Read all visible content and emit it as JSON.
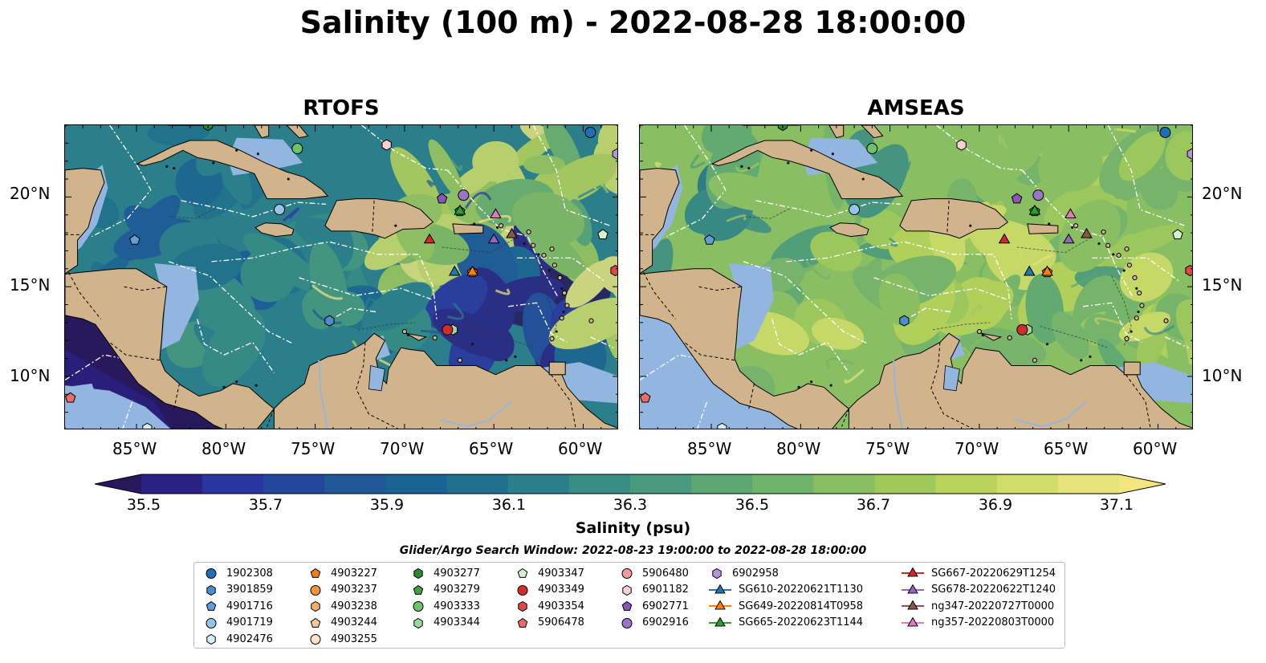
{
  "title": "Salinity (100 m) - 2022-08-28 18:00:00",
  "panels": [
    {
      "title": "RTOFS",
      "model": "rtofs"
    },
    {
      "title": "AMSEAS",
      "model": "amseas"
    }
  ],
  "axes": {
    "lon_ticks": [
      "85°W",
      "80°W",
      "75°W",
      "70°W",
      "65°W",
      "60°W"
    ],
    "lat_ticks": [
      "20°N",
      "15°N",
      "10°N"
    ],
    "extent": {
      "lon": [
        -89,
        -58
      ],
      "lat": [
        7,
        24
      ]
    }
  },
  "colorbar": {
    "label": "Salinity (psu)",
    "ticks": [
      "35.5",
      "35.7",
      "35.9",
      "36.1",
      "36.3",
      "36.5",
      "36.7",
      "36.9",
      "37.1"
    ],
    "range": [
      35.4,
      37.2
    ],
    "step": 0.1,
    "extend": "both",
    "colors": [
      "#27195c",
      "#2a2183",
      "#2b35a1",
      "#24479c",
      "#1f5797",
      "#1b6392",
      "#20718d",
      "#2a7f8a",
      "#388d85",
      "#48997e",
      "#5da775",
      "#72b36c",
      "#89bf62",
      "#a0c95c",
      "#b9d35a",
      "#d1dd6a",
      "#e6e27c",
      "#f4e57f"
    ]
  },
  "search_window": "Glider/Argo Search Window: 2022-08-23 19:00:00 to 2022-08-28 18:00:00",
  "legend": {
    "columns": [
      [
        {
          "label": "1902308",
          "marker": "circle",
          "color": "#1f6fb4"
        },
        {
          "label": "3901859",
          "marker": "hexagon",
          "color": "#4a8fc9"
        },
        {
          "label": "4901716",
          "marker": "pentagon",
          "color": "#5e9fd4"
        },
        {
          "label": "4901719",
          "marker": "circle",
          "color": "#94c4e8"
        },
        {
          "label": "4902476",
          "marker": "hexagon",
          "color": "#d6ecf8"
        }
      ],
      [
        {
          "label": "4903227",
          "marker": "pentagon",
          "color": "#f07f12"
        },
        {
          "label": "4903237",
          "marker": "circle",
          "color": "#f3953b"
        },
        {
          "label": "4903238",
          "marker": "hexagon",
          "color": "#f6ad6a"
        },
        {
          "label": "4903244",
          "marker": "pentagon",
          "color": "#f9c79a"
        },
        {
          "label": "4903255",
          "marker": "circle",
          "color": "#fde1c6"
        }
      ],
      [
        {
          "label": "4903277",
          "marker": "hexagon",
          "color": "#2c8a2c"
        },
        {
          "label": "4903279",
          "marker": "pentagon",
          "color": "#3fa23f"
        },
        {
          "label": "4903333",
          "marker": "circle",
          "color": "#6cc36c"
        },
        {
          "label": "4903344",
          "marker": "hexagon",
          "color": "#9bd99b"
        }
      ],
      [
        {
          "label": "4903347",
          "marker": "pentagon",
          "color": "#d4f2cc"
        },
        {
          "label": "4903349",
          "marker": "circle",
          "color": "#d42c2c"
        },
        {
          "label": "4903354",
          "marker": "hexagon",
          "color": "#e04848"
        },
        {
          "label": "5906478",
          "marker": "pentagon",
          "color": "#ec6b6b"
        }
      ],
      [
        {
          "label": "5906480",
          "marker": "circle",
          "color": "#f39b9b"
        },
        {
          "label": "6901182",
          "marker": "hexagon",
          "color": "#fbd0d0"
        },
        {
          "label": "6902771",
          "marker": "pentagon",
          "color": "#8a55b8"
        },
        {
          "label": "6902916",
          "marker": "circle",
          "color": "#9d73c6"
        }
      ],
      [
        {
          "label": "6902958",
          "marker": "hexagon",
          "color": "#b595d6"
        },
        {
          "label": "SG610-20220621T1130",
          "marker": "triangle",
          "color": "#1f77b4",
          "line": true
        },
        {
          "label": "SG649-20220814T0958",
          "marker": "triangle",
          "color": "#ff7f0e",
          "line": true
        },
        {
          "label": "SG665-20220623T1144",
          "marker": "triangle",
          "color": "#2ca02c",
          "line": true
        }
      ],
      [
        {
          "label": "SG667-20220629T1254",
          "marker": "triangle",
          "color": "#d62728",
          "line": true
        },
        {
          "label": "SG678-20220622T1240",
          "marker": "triangle",
          "color": "#9467bd",
          "line": true
        },
        {
          "label": "ng347-20220727T0000",
          "marker": "triangle",
          "color": "#8c564b",
          "line": true
        },
        {
          "label": "ng357-20220803T0000",
          "marker": "triangle",
          "color": "#e377c2",
          "line": true
        }
      ]
    ]
  },
  "platforms": [
    {
      "id": "1902308",
      "lon": -59.6,
      "lat": 23.6
    },
    {
      "id": "3901859",
      "lon": -74.2,
      "lat": 13.1
    },
    {
      "id": "4901716",
      "lon": -85.1,
      "lat": 17.6
    },
    {
      "id": "4901719",
      "lon": -77.0,
      "lat": 19.3
    },
    {
      "id": "4902476",
      "lon": -84.4,
      "lat": 7.1
    },
    {
      "id": "4903227",
      "lon": -66.2,
      "lat": 15.8
    },
    {
      "id": "4903277",
      "lon": -81.0,
      "lat": 24.0
    },
    {
      "id": "4903279",
      "lon": -66.9,
      "lat": 19.2
    },
    {
      "id": "4903333",
      "lon": -76.0,
      "lat": 22.7
    },
    {
      "id": "4903344",
      "lon": -67.3,
      "lat": 12.6
    },
    {
      "id": "4903347",
      "lon": -58.9,
      "lat": 17.9
    },
    {
      "id": "4903349",
      "lon": -67.6,
      "lat": 12.6
    },
    {
      "id": "4903354",
      "lon": -58.2,
      "lat": 15.9
    },
    {
      "id": "5906478",
      "lon": -88.7,
      "lat": 8.8
    },
    {
      "id": "6901182",
      "lon": -71.0,
      "lat": 22.9
    },
    {
      "id": "6902771",
      "lon": -67.9,
      "lat": 19.9
    },
    {
      "id": "6902916",
      "lon": -66.7,
      "lat": 20.1
    },
    {
      "id": "6902958",
      "lon": -58.1,
      "lat": 22.4
    },
    {
      "id": "SG610-20220621T1130",
      "lon": -67.2,
      "lat": 15.8
    },
    {
      "id": "SG649-20220814T0958",
      "lon": -66.2,
      "lat": 15.8
    },
    {
      "id": "SG665-20220623T1144",
      "lon": -66.9,
      "lat": 19.2
    },
    {
      "id": "SG667-20220629T1254",
      "lon": -68.6,
      "lat": 17.6
    },
    {
      "id": "SG678-20220622T1240",
      "lon": -65.0,
      "lat": 17.6
    },
    {
      "id": "ng347-20220727T0000",
      "lon": -64.0,
      "lat": 17.9
    },
    {
      "id": "ng357-20220803T0000",
      "lon": -64.9,
      "lat": 19.0
    }
  ]
}
